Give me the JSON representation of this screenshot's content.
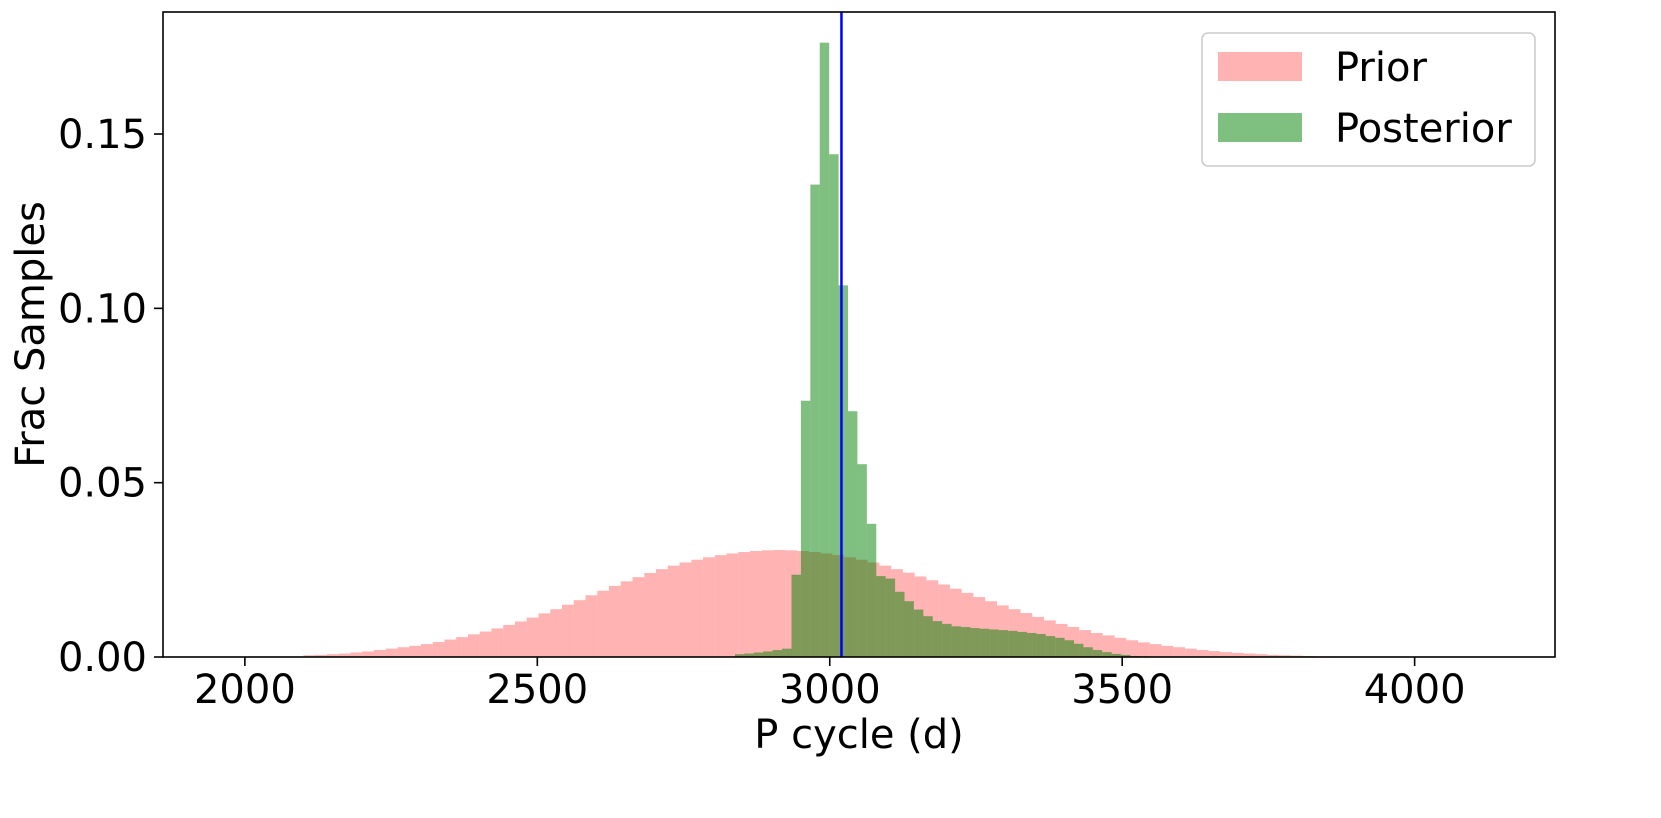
{
  "chart_data": {
    "type": "bar",
    "subtype": "histogram",
    "title": "",
    "xlabel": "P cycle (d)",
    "ylabel": "Frac Samples",
    "xlim": [
      1860,
      4240
    ],
    "ylim": [
      0,
      0.185
    ],
    "x_ticks": [
      2000,
      2500,
      3000,
      3500,
      4000
    ],
    "x_tick_labels": [
      "2000",
      "2500",
      "3000",
      "3500",
      "4000"
    ],
    "y_ticks": [
      0,
      0.05,
      0.1,
      0.15
    ],
    "y_tick_labels": [
      "0.00",
      "0.05",
      "0.10",
      "0.15"
    ],
    "grid": false,
    "legend_position": "top-right",
    "vertical_line": {
      "x": 3020,
      "color": "#0000ff"
    },
    "series": [
      {
        "name": "Prior",
        "color": "#ff8080",
        "opacity": 0.6,
        "bin_start": 2100,
        "bin_width": 20.1,
        "values": [
          0.0005,
          0.0006,
          0.0008,
          0.001,
          0.0013,
          0.0016,
          0.002,
          0.0024,
          0.0028,
          0.0032,
          0.0037,
          0.0043,
          0.005,
          0.0057,
          0.0065,
          0.0073,
          0.0082,
          0.0092,
          0.0102,
          0.0113,
          0.0125,
          0.0137,
          0.015,
          0.0163,
          0.0177,
          0.019,
          0.0204,
          0.0217,
          0.0229,
          0.0241,
          0.0252,
          0.0262,
          0.0271,
          0.0279,
          0.0286,
          0.0292,
          0.0297,
          0.0301,
          0.0304,
          0.0306,
          0.0307,
          0.0306,
          0.0304,
          0.0301,
          0.0297,
          0.0292,
          0.0286,
          0.0279,
          0.0271,
          0.0262,
          0.0252,
          0.0242,
          0.0231,
          0.022,
          0.0208,
          0.0196,
          0.0184,
          0.0172,
          0.016,
          0.0148,
          0.0137,
          0.0126,
          0.0115,
          0.0105,
          0.0095,
          0.0086,
          0.0077,
          0.0069,
          0.0062,
          0.0055,
          0.0048,
          0.0042,
          0.0037,
          0.0032,
          0.0028,
          0.0024,
          0.002,
          0.0017,
          0.0014,
          0.0012,
          0.001,
          0.0008,
          0.0006,
          0.0005,
          0.0004,
          0.0003,
          0.0002,
          0.0002,
          0.0001
        ]
      },
      {
        "name": "Posterior",
        "color": "#008000",
        "opacity": 0.5,
        "bin_start": 2838,
        "bin_width": 16.1,
        "values": [
          0.0008,
          0.001,
          0.0013,
          0.0016,
          0.002,
          0.0024,
          0.0236,
          0.0735,
          0.1355,
          0.1762,
          0.1442,
          0.1066,
          0.0705,
          0.0553,
          0.0382,
          0.0232,
          0.0225,
          0.0187,
          0.016,
          0.0136,
          0.0117,
          0.0103,
          0.0095,
          0.0088,
          0.0086,
          0.0083,
          0.0081,
          0.0079,
          0.0077,
          0.0075,
          0.0072,
          0.0069,
          0.0066,
          0.006,
          0.0055,
          0.0048,
          0.0038,
          0.0028,
          0.002,
          0.0014,
          0.0009,
          0.0006,
          0.0003,
          0.0002
        ]
      }
    ]
  }
}
